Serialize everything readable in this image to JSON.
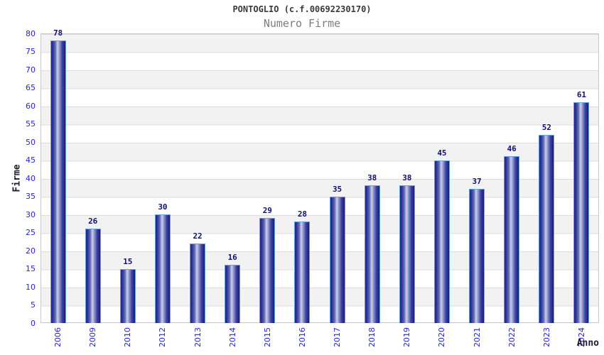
{
  "chart_data": {
    "type": "bar",
    "title": "PONTOGLIO (c.f.00692230170)",
    "subtitle": "Numero Firme",
    "xlabel": "Anno",
    "ylabel": "Firme",
    "categories": [
      "2006",
      "2009",
      "2010",
      "2012",
      "2013",
      "2014",
      "2015",
      "2016",
      "2017",
      "2018",
      "2019",
      "2020",
      "2021",
      "2022",
      "2023",
      "2024"
    ],
    "values": [
      78,
      26,
      15,
      30,
      22,
      16,
      29,
      28,
      35,
      38,
      38,
      45,
      37,
      46,
      52,
      61
    ],
    "ylim": [
      0,
      80
    ],
    "yticks": [
      0,
      5,
      10,
      15,
      20,
      25,
      30,
      35,
      40,
      45,
      50,
      55,
      60,
      65,
      70,
      75,
      80
    ],
    "grid": "horizontal-bands-alternating",
    "legend": "none",
    "colors": {
      "title": "#3a3a3a",
      "subtitle": "#7d7d7d",
      "tick_label": "#2626cc",
      "value_label": "#10106e",
      "axis_title": "#1c1c2e",
      "bar_dark": "#22278a",
      "bar_light": "#ccd0ec",
      "bar_border": "#63a0e0",
      "band_gray": "#f2f2f2",
      "grid_line": "#dcdcdc",
      "plot_border": "#c9c9c9"
    }
  }
}
